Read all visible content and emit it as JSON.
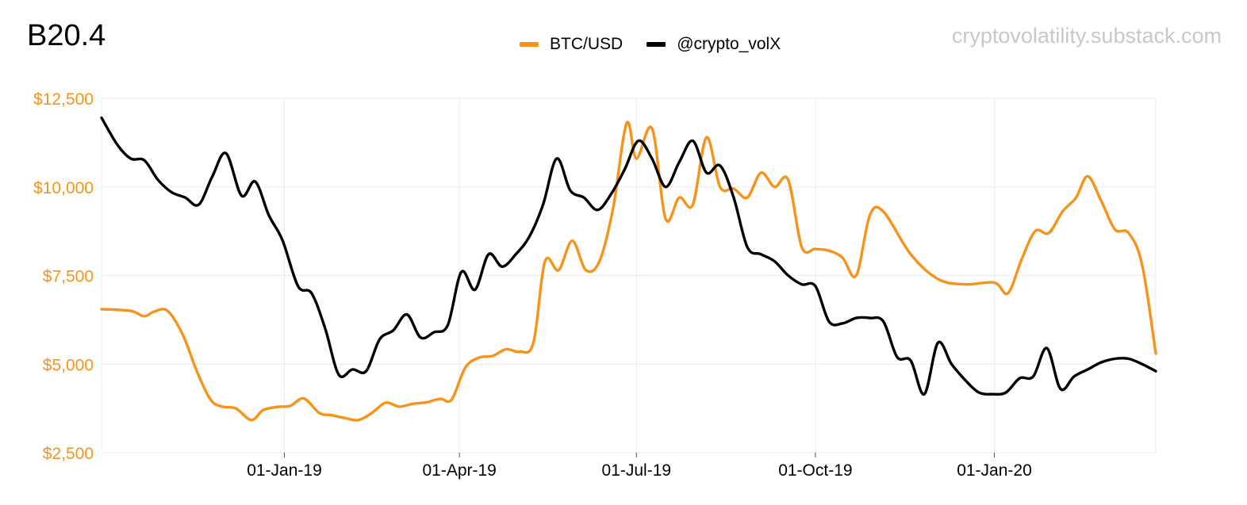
{
  "chart_data": {
    "type": "line",
    "title": "B20.4",
    "watermark": "cryptovolatility.substack.com",
    "legend_position": "top-center",
    "grid": true,
    "y_axis": {
      "ticks": [
        2500,
        5000,
        7500,
        10000,
        12500
      ],
      "tick_labels": [
        "$2,500",
        "$5,000",
        "$7,500",
        "$10,000",
        "$12,500"
      ],
      "ylim": [
        2500,
        12500
      ],
      "color": "#f7931a"
    },
    "x_axis": {
      "xlim": [
        "2018-09-29",
        "2020-03-24"
      ],
      "ticks": [
        "2019-01-01",
        "2019-04-01",
        "2019-07-01",
        "2019-10-01",
        "2020-01-01"
      ],
      "tick_labels": [
        "01-Jan-19",
        "01-Apr-19",
        "01-Jul-19",
        "01-Oct-19",
        "01-Jan-20"
      ]
    },
    "series": [
      {
        "name": "BTC/USD",
        "color": "#f7931a",
        "points": [
          [
            "2018-09-29",
            6550
          ],
          [
            "2018-10-14",
            6500
          ],
          [
            "2018-10-21",
            6350
          ],
          [
            "2018-10-26",
            6480
          ],
          [
            "2018-11-02",
            6500
          ],
          [
            "2018-11-10",
            5800
          ],
          [
            "2018-11-17",
            4800
          ],
          [
            "2018-11-24",
            4000
          ],
          [
            "2018-11-30",
            3800
          ],
          [
            "2018-12-07",
            3750
          ],
          [
            "2018-12-15",
            3420
          ],
          [
            "2018-12-21",
            3700
          ],
          [
            "2018-12-28",
            3790
          ],
          [
            "2019-01-04",
            3820
          ],
          [
            "2019-01-11",
            4030
          ],
          [
            "2019-01-19",
            3620
          ],
          [
            "2019-01-25",
            3560
          ],
          [
            "2019-02-01",
            3480
          ],
          [
            "2019-02-08",
            3420
          ],
          [
            "2019-02-15",
            3620
          ],
          [
            "2019-02-22",
            3910
          ],
          [
            "2019-03-01",
            3800
          ],
          [
            "2019-03-08",
            3880
          ],
          [
            "2019-03-15",
            3920
          ],
          [
            "2019-03-22",
            4020
          ],
          [
            "2019-03-28",
            4000
          ],
          [
            "2019-04-04",
            4900
          ],
          [
            "2019-04-11",
            5180
          ],
          [
            "2019-04-18",
            5230
          ],
          [
            "2019-04-25",
            5420
          ],
          [
            "2019-05-02",
            5350
          ],
          [
            "2019-05-09",
            5600
          ],
          [
            "2019-05-15",
            7900
          ],
          [
            "2019-05-22",
            7650
          ],
          [
            "2019-05-29",
            8480
          ],
          [
            "2019-06-05",
            7650
          ],
          [
            "2019-06-12",
            7900
          ],
          [
            "2019-06-19",
            9400
          ],
          [
            "2019-06-26",
            11800
          ],
          [
            "2019-07-01",
            10800
          ],
          [
            "2019-07-09",
            11650
          ],
          [
            "2019-07-16",
            9100
          ],
          [
            "2019-07-23",
            9700
          ],
          [
            "2019-07-30",
            9500
          ],
          [
            "2019-08-06",
            11400
          ],
          [
            "2019-08-13",
            10000
          ],
          [
            "2019-08-20",
            9950
          ],
          [
            "2019-08-27",
            9700
          ],
          [
            "2019-09-03",
            10400
          ],
          [
            "2019-09-10",
            10000
          ],
          [
            "2019-09-17",
            10200
          ],
          [
            "2019-09-24",
            8300
          ],
          [
            "2019-10-01",
            8250
          ],
          [
            "2019-10-08",
            8200
          ],
          [
            "2019-10-15",
            8000
          ],
          [
            "2019-10-22",
            7500
          ],
          [
            "2019-10-29",
            9200
          ],
          [
            "2019-11-05",
            9300
          ],
          [
            "2019-11-19",
            8100
          ],
          [
            "2019-12-03",
            7400
          ],
          [
            "2019-12-17",
            7250
          ],
          [
            "2020-01-01",
            7300
          ],
          [
            "2020-01-08",
            7000
          ],
          [
            "2020-01-15",
            7950
          ],
          [
            "2020-01-22",
            8750
          ],
          [
            "2020-01-29",
            8700
          ],
          [
            "2020-02-05",
            9300
          ],
          [
            "2020-02-12",
            9700
          ],
          [
            "2020-02-18",
            10300
          ],
          [
            "2020-02-25",
            9600
          ],
          [
            "2020-03-03",
            8800
          ],
          [
            "2020-03-10",
            8700
          ],
          [
            "2020-03-17",
            7800
          ],
          [
            "2020-03-24",
            5300
          ]
        ]
      },
      {
        "name": "@crypto_volX",
        "color": "#000000",
        "points": [
          [
            "2018-09-29",
            11950
          ],
          [
            "2018-10-07",
            11200
          ],
          [
            "2018-10-14",
            10800
          ],
          [
            "2018-10-21",
            10750
          ],
          [
            "2018-10-28",
            10200
          ],
          [
            "2018-11-04",
            9850
          ],
          [
            "2018-11-11",
            9700
          ],
          [
            "2018-11-18",
            9500
          ],
          [
            "2018-11-25",
            10300
          ],
          [
            "2018-12-02",
            10950
          ],
          [
            "2018-12-10",
            9750
          ],
          [
            "2018-12-17",
            10150
          ],
          [
            "2018-12-24",
            9200
          ],
          [
            "2018-12-31",
            8500
          ],
          [
            "2019-01-08",
            7200
          ],
          [
            "2019-01-15",
            7000
          ],
          [
            "2019-01-22",
            6000
          ],
          [
            "2019-01-29",
            4700
          ],
          [
            "2019-02-05",
            4850
          ],
          [
            "2019-02-12",
            4800
          ],
          [
            "2019-02-19",
            5700
          ],
          [
            "2019-02-26",
            5950
          ],
          [
            "2019-03-05",
            6400
          ],
          [
            "2019-03-12",
            5750
          ],
          [
            "2019-03-19",
            5900
          ],
          [
            "2019-03-26",
            6100
          ],
          [
            "2019-04-02",
            7600
          ],
          [
            "2019-04-09",
            7100
          ],
          [
            "2019-04-16",
            8100
          ],
          [
            "2019-04-23",
            7750
          ],
          [
            "2019-04-30",
            8100
          ],
          [
            "2019-05-07",
            8600
          ],
          [
            "2019-05-14",
            9500
          ],
          [
            "2019-05-21",
            10800
          ],
          [
            "2019-05-28",
            9900
          ],
          [
            "2019-06-04",
            9700
          ],
          [
            "2019-06-11",
            9350
          ],
          [
            "2019-06-18",
            9800
          ],
          [
            "2019-06-25",
            10500
          ],
          [
            "2019-07-02",
            11300
          ],
          [
            "2019-07-09",
            10800
          ],
          [
            "2019-07-16",
            10000
          ],
          [
            "2019-07-23",
            10700
          ],
          [
            "2019-07-30",
            11300
          ],
          [
            "2019-08-06",
            10400
          ],
          [
            "2019-08-13",
            10600
          ],
          [
            "2019-08-20",
            9700
          ],
          [
            "2019-08-27",
            8300
          ],
          [
            "2019-09-03",
            8100
          ],
          [
            "2019-09-10",
            7900
          ],
          [
            "2019-09-17",
            7500
          ],
          [
            "2019-09-24",
            7250
          ],
          [
            "2019-10-01",
            7200
          ],
          [
            "2019-10-08",
            6200
          ],
          [
            "2019-10-15",
            6150
          ],
          [
            "2019-10-22",
            6300
          ],
          [
            "2019-10-29",
            6300
          ],
          [
            "2019-11-05",
            6200
          ],
          [
            "2019-11-12",
            5200
          ],
          [
            "2019-11-19",
            5100
          ],
          [
            "2019-11-26",
            4150
          ],
          [
            "2019-12-03",
            5600
          ],
          [
            "2019-12-10",
            5000
          ],
          [
            "2019-12-17",
            4550
          ],
          [
            "2019-12-24",
            4200
          ],
          [
            "2019-12-31",
            4150
          ],
          [
            "2020-01-07",
            4200
          ],
          [
            "2020-01-14",
            4600
          ],
          [
            "2020-01-21",
            4650
          ],
          [
            "2020-01-28",
            5450
          ],
          [
            "2020-02-04",
            4300
          ],
          [
            "2020-02-11",
            4650
          ],
          [
            "2020-02-18",
            4850
          ],
          [
            "2020-02-25",
            5050
          ],
          [
            "2020-03-03",
            5150
          ],
          [
            "2020-03-10",
            5150
          ],
          [
            "2020-03-17",
            5000
          ],
          [
            "2020-03-24",
            4800
          ]
        ]
      }
    ]
  }
}
